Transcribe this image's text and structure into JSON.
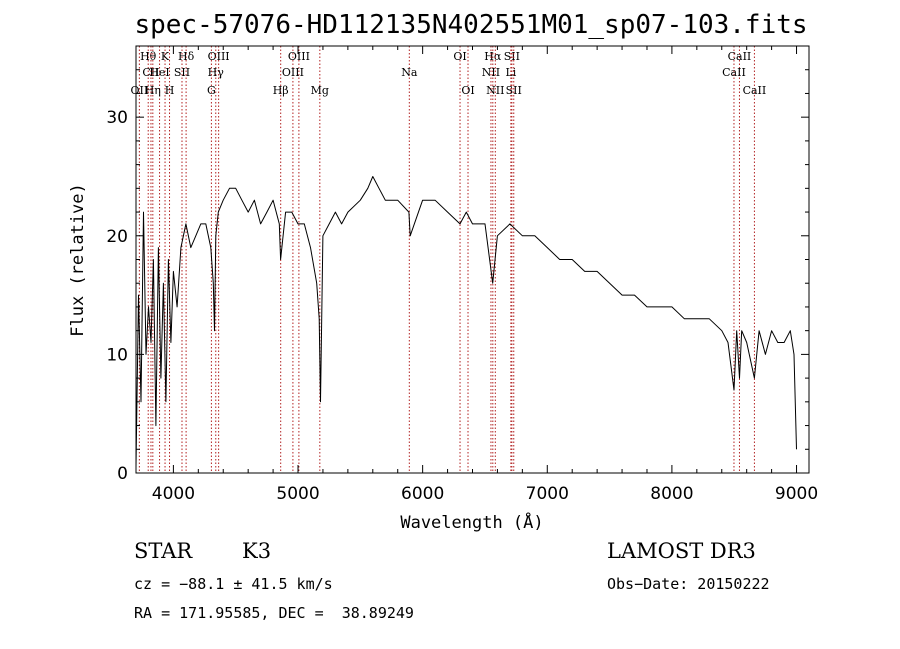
{
  "chart_data": {
    "type": "line",
    "title": "spec-57076-HD112135N402551M01_sp07-103.fits",
    "xlabel": "Wavelength (Å)",
    "ylabel": "Flux (relative)",
    "xlim": [
      3700,
      9100
    ],
    "ylim": [
      0,
      36
    ],
    "xticks": [
      4000,
      5000,
      6000,
      7000,
      8000,
      9000
    ],
    "yticks": [
      0,
      10,
      20,
      30
    ],
    "series": [
      {
        "name": "spectrum",
        "x": [
          3700,
          3720,
          3740,
          3760,
          3780,
          3800,
          3820,
          3840,
          3860,
          3880,
          3900,
          3920,
          3940,
          3960,
          3980,
          4000,
          4030,
          4060,
          4100,
          4140,
          4180,
          4220,
          4260,
          4300,
          4320,
          4330,
          4340,
          4360,
          4400,
          4450,
          4500,
          4550,
          4600,
          4650,
          4700,
          4750,
          4800,
          4850,
          4860,
          4900,
          4950,
          5000,
          5050,
          5100,
          5150,
          5170,
          5180,
          5200,
          5250,
          5300,
          5350,
          5400,
          5500,
          5560,
          5600,
          5650,
          5700,
          5800,
          5890,
          5900,
          6000,
          6100,
          6200,
          6300,
          6350,
          6400,
          6500,
          6562,
          6600,
          6700,
          6800,
          6900,
          7000,
          7100,
          7200,
          7300,
          7400,
          7500,
          7600,
          7700,
          7800,
          7900,
          8000,
          8100,
          8200,
          8300,
          8400,
          8450,
          8498,
          8520,
          8542,
          8560,
          8600,
          8662,
          8700,
          8750,
          8800,
          8850,
          8900,
          8950,
          8980,
          9000
        ],
        "values": [
          0.5,
          15,
          6,
          22,
          10,
          14,
          11,
          18,
          4,
          19,
          8,
          16,
          6,
          18,
          11,
          17,
          14,
          19,
          21,
          19,
          20,
          21,
          21,
          19,
          16,
          12,
          20,
          22,
          23,
          24,
          24,
          23,
          22,
          23,
          21,
          22,
          23,
          21,
          18,
          22,
          22,
          21,
          21,
          19,
          16,
          13,
          6,
          20,
          21,
          22,
          21,
          22,
          23,
          24,
          25,
          24,
          23,
          23,
          22,
          20,
          23,
          23,
          22,
          21,
          22,
          21,
          21,
          16,
          20,
          21,
          20,
          20,
          19,
          18,
          18,
          17,
          17,
          16,
          15,
          15,
          14,
          14,
          14,
          13,
          13,
          13,
          12,
          11,
          7,
          12,
          8,
          12,
          11,
          8,
          12,
          10,
          12,
          11,
          11,
          12,
          10,
          2
        ]
      }
    ],
    "lines": [
      {
        "label": "Hθ",
        "x": 3798,
        "row": 1
      },
      {
        "label": "CII",
        "x": 3820,
        "row": 2
      },
      {
        "label": "OII",
        "x": 3727,
        "row": 3
      },
      {
        "label": "K",
        "x": 3933,
        "row": 1
      },
      {
        "label": "HeI",
        "x": 3889,
        "row": 2
      },
      {
        "label": "Hη",
        "x": 3835,
        "row": 3
      },
      {
        "label": "Hδ",
        "x": 4102,
        "row": 1
      },
      {
        "label": "SII",
        "x": 4069,
        "row": 2
      },
      {
        "label": "H",
        "x": 3969,
        "row": 3
      },
      {
        "label": "OIII",
        "x": 4363,
        "row": 1
      },
      {
        "label": "Hγ",
        "x": 4340,
        "row": 2
      },
      {
        "label": "G",
        "x": 4305,
        "row": 3
      },
      {
        "label": "OIII",
        "x": 5007,
        "row": 1
      },
      {
        "label": "OIII",
        "x": 4959,
        "row": 2
      },
      {
        "label": "Hβ",
        "x": 4861,
        "row": 3
      },
      {
        "label": "Mg",
        "x": 5175,
        "row": 3
      },
      {
        "label": "Na",
        "x": 5893,
        "row": 2
      },
      {
        "label": "OI",
        "x": 6300,
        "row": 1
      },
      {
        "label": "OI",
        "x": 6364,
        "row": 3
      },
      {
        "label": "Hα",
        "x": 6563,
        "row": 1
      },
      {
        "label": "NII",
        "x": 6548,
        "row": 2
      },
      {
        "label": "NII",
        "x": 6583,
        "row": 3
      },
      {
        "label": "SII",
        "x": 6716,
        "row": 1
      },
      {
        "label": "Li",
        "x": 6708,
        "row": 2
      },
      {
        "label": "SII",
        "x": 6731,
        "row": 3
      },
      {
        "label": "CaII",
        "x": 8542,
        "row": 1
      },
      {
        "label": "CaII",
        "x": 8498,
        "row": 2
      },
      {
        "label": "CaII",
        "x": 8662,
        "row": 3
      }
    ],
    "colors": {
      "spectrum": "#000000",
      "lines": "#b22222"
    }
  },
  "info": {
    "obj_class": "STAR",
    "subclass": "K3",
    "survey": "LAMOST DR3",
    "cz": "cz = −88.1 ± 41.5 km/s",
    "obs_date": "Obs−Date: 20150222",
    "radec": "RA = 171.95585, DEC =  38.89249"
  }
}
